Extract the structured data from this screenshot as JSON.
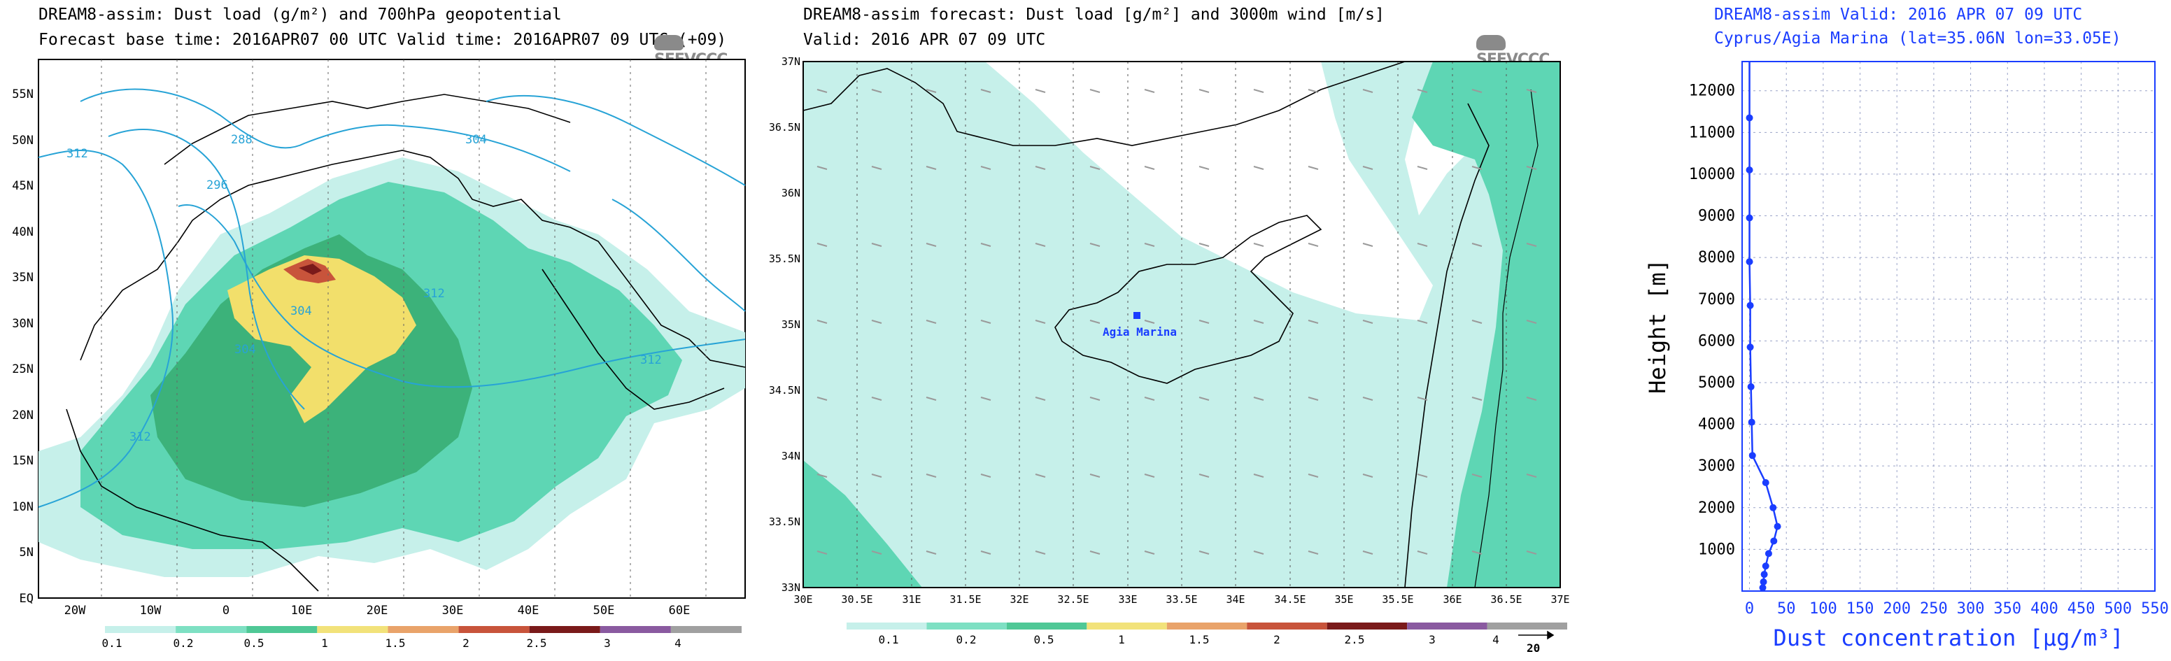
{
  "panel_map": {
    "title_line1": "DREAM8-assim: Dust load (g/m²) and 700hPa geopotential",
    "title_line2": "Forecast base time: 2016APR07 00 UTC  Valid time: 2016APR07 09 UTC  (+09)",
    "logo": "SEEVCCC",
    "lon_ticks": [
      "20W",
      "10W",
      "0",
      "10E",
      "20E",
      "30E",
      "40E",
      "50E",
      "60E"
    ],
    "lat_ticks": [
      "EQ",
      "5N",
      "10N",
      "15N",
      "20N",
      "25N",
      "30N",
      "35N",
      "40N",
      "45N",
      "50N",
      "55N"
    ],
    "contour_labels": [
      "312",
      "288",
      "296",
      "304",
      "312",
      "304",
      "312",
      "304",
      "312"
    ]
  },
  "panel_zoom": {
    "title_line1": "DREAM8-assim forecast: Dust load [g/m²] and 3000m wind [m/s]",
    "title_line2": "Valid: 2016 APR 07  09 UTC",
    "logo": "SEEVCCC",
    "lon_ticks": [
      "30E",
      "30.5E",
      "31E",
      "31.5E",
      "32E",
      "32.5E",
      "33E",
      "33.5E",
      "34E",
      "34.5E",
      "35E",
      "35.5E",
      "36E",
      "36.5E",
      "37E"
    ],
    "lat_ticks": [
      "33N",
      "33.5N",
      "34N",
      "34.5N",
      "35N",
      "35.5N",
      "36N",
      "36.5N",
      "37N"
    ],
    "station_label": "Agia Marina",
    "wind_ref": "20"
  },
  "colorbar": {
    "labels": [
      "0.1",
      "0.2",
      "0.5",
      "1",
      "1.5",
      "2",
      "2.5",
      "3",
      "4"
    ],
    "colors": [
      "#c6f0ea",
      "#7ee0c3",
      "#4fc896",
      "#f2e27a",
      "#e9a36a",
      "#c8543b",
      "#7a1a1a",
      "#8a5aa0",
      "#a0a0a0"
    ]
  },
  "colors": {
    "dust_low": "#c6f0ea",
    "dust_mid": "#5ed6b4",
    "dust_high": "#3cb27a",
    "dust_yellow": "#f2df6b",
    "contour": "#27a3d6",
    "profile": "#1a3dff"
  },
  "chart_data": [
    {
      "type": "line",
      "title": "DREAM8-assim  Valid: 2016 APR 07  09 UTC",
      "subtitle": "Cyprus/Agia Marina (lat=35.06N lon=33.05E)",
      "xlabel": "Dust concentration [μg/m³]",
      "ylabel": "Height [m]",
      "xlim": [
        -10,
        550
      ],
      "ylim": [
        0,
        12700
      ],
      "x_ticks": [
        0,
        50,
        100,
        150,
        200,
        250,
        300,
        350,
        400,
        450,
        500,
        550
      ],
      "y_ticks": [
        1000,
        2000,
        3000,
        4000,
        5000,
        6000,
        7000,
        8000,
        9000,
        10000,
        11000,
        12000
      ],
      "grid": true,
      "series": [
        {
          "x": [
            18,
            19,
            20,
            22,
            26,
            33,
            38,
            32,
            22,
            4,
            3,
            2,
            1,
            1,
            0,
            0,
            0,
            0
          ],
          "y": [
            80,
            220,
            400,
            600,
            900,
            1200,
            1550,
            2000,
            2600,
            3250,
            4050,
            4900,
            5850,
            6850,
            7900,
            8950,
            10100,
            11350
          ]
        }
      ],
      "top_value": 12700
    }
  ]
}
